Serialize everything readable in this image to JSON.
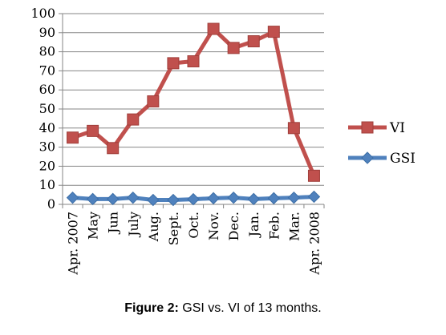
{
  "chart_data": {
    "type": "line",
    "categories": [
      "Apr. 2007",
      "May",
      "Jun",
      "July",
      "Aug.",
      "Sept.",
      "Oct.",
      "Nov.",
      "Dec.",
      "Jan.",
      "Feb.",
      "Mar.",
      "Apr. 2008"
    ],
    "series": [
      {
        "name": "VI",
        "color": "#c0504d",
        "marker": "square",
        "values": [
          35,
          38.5,
          29.5,
          44.5,
          54,
          74,
          75,
          92,
          82,
          85.5,
          90.5,
          40,
          15
        ]
      },
      {
        "name": "GSI",
        "color": "#4f81bd",
        "marker": "diamond",
        "values": [
          3.5,
          2.8,
          2.8,
          3.5,
          2.3,
          2.3,
          2.7,
          3.2,
          3.5,
          2.8,
          3.2,
          3.5,
          4
        ]
      }
    ],
    "yticks": [
      0,
      10,
      20,
      30,
      40,
      50,
      60,
      70,
      80,
      90,
      100
    ],
    "ylim": [
      0,
      100
    ],
    "grid": true,
    "legend": "right"
  },
  "caption": {
    "label": "Figure 2:",
    "text": " GSI vs. VI of 13 months."
  }
}
